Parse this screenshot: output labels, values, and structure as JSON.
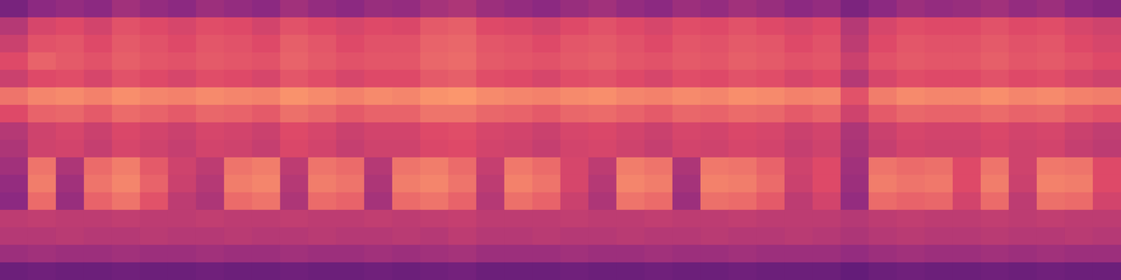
{
  "chart_data": {
    "type": "heatmap",
    "tick_labels": false,
    "zlim": [
      0,
      1
    ],
    "cells": [
      [
        0.35,
        0.4,
        0.42,
        0.4,
        0.45,
        0.42,
        0.4,
        0.44,
        0.42,
        0.4,
        0.45,
        0.42,
        0.4,
        0.43,
        0.42,
        0.46,
        0.48,
        0.44,
        0.42,
        0.4,
        0.43,
        0.45,
        0.42,
        0.4,
        0.44,
        0.42,
        0.45,
        0.43,
        0.4,
        0.42,
        0.36,
        0.4,
        0.44,
        0.42,
        0.43,
        0.45,
        0.42,
        0.44,
        0.4,
        0.38
      ],
      [
        0.5,
        0.58,
        0.6,
        0.57,
        0.62,
        0.6,
        0.58,
        0.61,
        0.6,
        0.57,
        0.62,
        0.6,
        0.58,
        0.6,
        0.59,
        0.64,
        0.65,
        0.6,
        0.59,
        0.57,
        0.6,
        0.62,
        0.6,
        0.58,
        0.61,
        0.6,
        0.62,
        0.6,
        0.58,
        0.6,
        0.5,
        0.58,
        0.61,
        0.6,
        0.6,
        0.62,
        0.6,
        0.61,
        0.58,
        0.56
      ],
      [
        0.55,
        0.62,
        0.63,
        0.6,
        0.64,
        0.62,
        0.6,
        0.63,
        0.62,
        0.6,
        0.65,
        0.63,
        0.6,
        0.62,
        0.62,
        0.66,
        0.67,
        0.63,
        0.62,
        0.6,
        0.63,
        0.64,
        0.62,
        0.6,
        0.63,
        0.62,
        0.64,
        0.63,
        0.6,
        0.62,
        0.52,
        0.6,
        0.63,
        0.62,
        0.62,
        0.64,
        0.62,
        0.63,
        0.6,
        0.58
      ],
      [
        0.6,
        0.66,
        0.64,
        0.62,
        0.65,
        0.63,
        0.62,
        0.64,
        0.63,
        0.62,
        0.66,
        0.64,
        0.62,
        0.63,
        0.63,
        0.67,
        0.68,
        0.64,
        0.63,
        0.62,
        0.64,
        0.65,
        0.63,
        0.62,
        0.64,
        0.63,
        0.65,
        0.64,
        0.62,
        0.63,
        0.55,
        0.62,
        0.64,
        0.63,
        0.63,
        0.65,
        0.63,
        0.64,
        0.62,
        0.6
      ],
      [
        0.55,
        0.6,
        0.61,
        0.58,
        0.62,
        0.6,
        0.58,
        0.61,
        0.6,
        0.58,
        0.63,
        0.61,
        0.58,
        0.6,
        0.6,
        0.64,
        0.65,
        0.61,
        0.6,
        0.58,
        0.61,
        0.62,
        0.6,
        0.58,
        0.61,
        0.6,
        0.62,
        0.61,
        0.58,
        0.6,
        0.5,
        0.58,
        0.61,
        0.6,
        0.6,
        0.62,
        0.6,
        0.61,
        0.58,
        0.56
      ],
      [
        0.7,
        0.74,
        0.75,
        0.73,
        0.76,
        0.74,
        0.73,
        0.75,
        0.74,
        0.73,
        0.77,
        0.75,
        0.73,
        0.75,
        0.74,
        0.77,
        0.78,
        0.75,
        0.74,
        0.73,
        0.75,
        0.76,
        0.74,
        0.73,
        0.75,
        0.74,
        0.76,
        0.75,
        0.73,
        0.74,
        0.62,
        0.72,
        0.75,
        0.74,
        0.74,
        0.76,
        0.74,
        0.75,
        0.73,
        0.72
      ],
      [
        0.6,
        0.66,
        0.67,
        0.64,
        0.68,
        0.66,
        0.64,
        0.67,
        0.66,
        0.64,
        0.69,
        0.67,
        0.64,
        0.66,
        0.66,
        0.7,
        0.7,
        0.67,
        0.66,
        0.64,
        0.67,
        0.68,
        0.66,
        0.64,
        0.67,
        0.66,
        0.68,
        0.67,
        0.64,
        0.66,
        0.56,
        0.64,
        0.67,
        0.66,
        0.66,
        0.68,
        0.66,
        0.67,
        0.64,
        0.62
      ],
      [
        0.5,
        0.56,
        0.58,
        0.55,
        0.59,
        0.57,
        0.55,
        0.58,
        0.57,
        0.55,
        0.6,
        0.58,
        0.55,
        0.57,
        0.57,
        0.6,
        0.61,
        0.58,
        0.57,
        0.55,
        0.58,
        0.59,
        0.57,
        0.55,
        0.58,
        0.57,
        0.59,
        0.58,
        0.55,
        0.57,
        0.48,
        0.55,
        0.58,
        0.57,
        0.57,
        0.59,
        0.57,
        0.58,
        0.55,
        0.53
      ],
      [
        0.48,
        0.56,
        0.57,
        0.54,
        0.58,
        0.56,
        0.54,
        0.57,
        0.56,
        0.54,
        0.59,
        0.57,
        0.54,
        0.56,
        0.56,
        0.59,
        0.6,
        0.57,
        0.56,
        0.54,
        0.57,
        0.58,
        0.56,
        0.54,
        0.57,
        0.56,
        0.58,
        0.57,
        0.54,
        0.56,
        0.47,
        0.54,
        0.57,
        0.56,
        0.56,
        0.58,
        0.56,
        0.57,
        0.54,
        0.52
      ],
      [
        0.45,
        0.7,
        0.48,
        0.68,
        0.72,
        0.64,
        0.56,
        0.52,
        0.7,
        0.72,
        0.52,
        0.7,
        0.68,
        0.5,
        0.7,
        0.72,
        0.68,
        0.54,
        0.71,
        0.68,
        0.58,
        0.52,
        0.72,
        0.7,
        0.48,
        0.71,
        0.7,
        0.66,
        0.56,
        0.6,
        0.45,
        0.7,
        0.68,
        0.69,
        0.6,
        0.7,
        0.56,
        0.71,
        0.7,
        0.6
      ],
      [
        0.42,
        0.72,
        0.45,
        0.7,
        0.74,
        0.66,
        0.55,
        0.5,
        0.72,
        0.74,
        0.5,
        0.72,
        0.7,
        0.48,
        0.72,
        0.74,
        0.7,
        0.52,
        0.73,
        0.7,
        0.58,
        0.5,
        0.74,
        0.72,
        0.46,
        0.73,
        0.72,
        0.68,
        0.55,
        0.6,
        0.44,
        0.72,
        0.7,
        0.71,
        0.6,
        0.72,
        0.55,
        0.73,
        0.72,
        0.6
      ],
      [
        0.4,
        0.68,
        0.43,
        0.66,
        0.7,
        0.62,
        0.52,
        0.48,
        0.68,
        0.7,
        0.48,
        0.68,
        0.66,
        0.46,
        0.68,
        0.7,
        0.66,
        0.5,
        0.69,
        0.66,
        0.55,
        0.48,
        0.7,
        0.68,
        0.44,
        0.69,
        0.68,
        0.64,
        0.52,
        0.57,
        0.42,
        0.68,
        0.66,
        0.67,
        0.57,
        0.68,
        0.52,
        0.69,
        0.68,
        0.57
      ],
      [
        0.52,
        0.53,
        0.52,
        0.52,
        0.53,
        0.52,
        0.52,
        0.53,
        0.52,
        0.52,
        0.53,
        0.52,
        0.52,
        0.53,
        0.52,
        0.53,
        0.54,
        0.52,
        0.52,
        0.52,
        0.53,
        0.52,
        0.52,
        0.53,
        0.52,
        0.52,
        0.53,
        0.52,
        0.52,
        0.52,
        0.5,
        0.52,
        0.53,
        0.52,
        0.52,
        0.53,
        0.52,
        0.53,
        0.52,
        0.52
      ],
      [
        0.5,
        0.5,
        0.51,
        0.5,
        0.5,
        0.51,
        0.5,
        0.5,
        0.51,
        0.5,
        0.5,
        0.51,
        0.5,
        0.5,
        0.51,
        0.5,
        0.52,
        0.5,
        0.5,
        0.51,
        0.5,
        0.5,
        0.51,
        0.5,
        0.5,
        0.51,
        0.5,
        0.5,
        0.51,
        0.5,
        0.48,
        0.5,
        0.51,
        0.5,
        0.5,
        0.51,
        0.5,
        0.5,
        0.51,
        0.5
      ],
      [
        0.44,
        0.45,
        0.44,
        0.44,
        0.45,
        0.44,
        0.44,
        0.45,
        0.44,
        0.44,
        0.45,
        0.44,
        0.44,
        0.45,
        0.44,
        0.45,
        0.46,
        0.44,
        0.44,
        0.44,
        0.45,
        0.44,
        0.44,
        0.45,
        0.44,
        0.44,
        0.45,
        0.44,
        0.44,
        0.44,
        0.42,
        0.44,
        0.45,
        0.44,
        0.44,
        0.45,
        0.44,
        0.45,
        0.44,
        0.44
      ],
      [
        0.32,
        0.33,
        0.32,
        0.32,
        0.33,
        0.32,
        0.32,
        0.33,
        0.32,
        0.32,
        0.33,
        0.32,
        0.32,
        0.33,
        0.32,
        0.33,
        0.34,
        0.32,
        0.32,
        0.32,
        0.33,
        0.32,
        0.32,
        0.33,
        0.32,
        0.32,
        0.33,
        0.32,
        0.32,
        0.32,
        0.3,
        0.32,
        0.33,
        0.32,
        0.32,
        0.33,
        0.32,
        0.33,
        0.32,
        0.32
      ]
    ]
  }
}
